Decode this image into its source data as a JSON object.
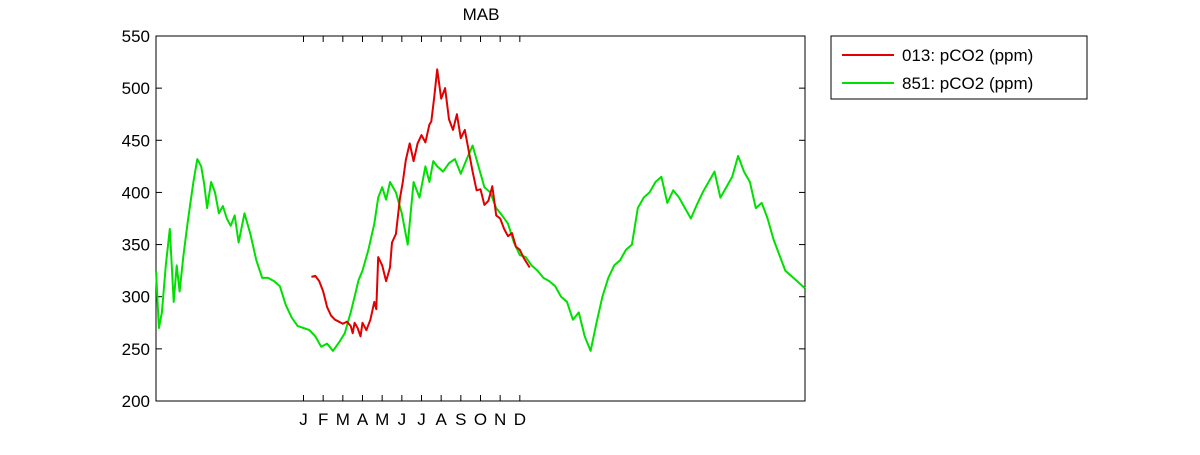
{
  "chart_data": {
    "type": "line",
    "title": "MAB",
    "xlabel": "",
    "ylabel": "",
    "ylim": [
      200,
      550
    ],
    "y_ticks": [
      200,
      250,
      300,
      350,
      400,
      450,
      500,
      550
    ],
    "x_tick_labels": [
      "J",
      "F",
      "M",
      "A",
      "M",
      "J",
      "J",
      "A",
      "S",
      "O",
      "N",
      "D"
    ],
    "x_tick_positions": [
      4.5,
      5.5,
      6.5,
      7.5,
      8.5,
      9.5,
      10.5,
      11.5,
      12.5,
      13.5,
      14.5,
      15.5
    ],
    "xlim": [
      -3,
      30
    ],
    "grid": false,
    "legend_position": "outside-top-right",
    "colors": {
      "013": "#e00000",
      "851": "#00e000"
    },
    "series": [
      {
        "name": "013: pCO2 (ppm)",
        "color": "#e00000",
        "x": [
          4.9,
          5.1,
          5.3,
          5.5,
          5.7,
          5.9,
          6.1,
          6.3,
          6.5,
          6.7,
          6.9,
          7.0,
          7.1,
          7.25,
          7.4,
          7.5,
          7.7,
          7.9,
          8.1,
          8.2,
          8.3,
          8.5,
          8.7,
          8.9,
          9.0,
          9.2,
          9.4,
          9.55,
          9.7,
          9.9,
          10.1,
          10.3,
          10.5,
          10.7,
          10.9,
          11.0,
          11.15,
          11.3,
          11.5,
          11.7,
          11.9,
          12.1,
          12.3,
          12.5,
          12.7,
          12.9,
          13.1,
          13.3,
          13.5,
          13.7,
          13.9,
          14.1,
          14.3,
          14.5,
          14.7,
          14.9,
          15.1,
          15.3,
          15.5,
          15.7,
          16.0
        ],
        "y": [
          319,
          320,
          315,
          305,
          290,
          282,
          278,
          276,
          274,
          276,
          272,
          265,
          275,
          270,
          262,
          275,
          268,
          278,
          295,
          288,
          338,
          330,
          315,
          328,
          352,
          360,
          394,
          410,
          431,
          447,
          430,
          447,
          455,
          448,
          465,
          468,
          492,
          518,
          490,
          500,
          470,
          460,
          475,
          452,
          460,
          440,
          420,
          402,
          403,
          388,
          392,
          406,
          378,
          375,
          365,
          358,
          361,
          348,
          345,
          337,
          328
        ]
      },
      {
        "name": "851: pCO2 (ppm)",
        "color": "#00e000",
        "x": [
          -3.0,
          -2.85,
          -2.7,
          -2.5,
          -2.3,
          -2.1,
          -1.95,
          -1.8,
          -1.6,
          -1.4,
          -1.25,
          -1.1,
          -0.9,
          -0.7,
          -0.55,
          -0.4,
          -0.2,
          0.0,
          0.2,
          0.4,
          0.6,
          0.8,
          1.0,
          1.2,
          1.5,
          1.8,
          2.1,
          2.4,
          2.7,
          3.0,
          3.3,
          3.6,
          3.9,
          4.2,
          4.5,
          4.8,
          5.1,
          5.4,
          5.7,
          6.0,
          6.3,
          6.6,
          6.9,
          7.1,
          7.3,
          7.5,
          7.8,
          8.1,
          8.3,
          8.5,
          8.7,
          8.9,
          9.2,
          9.5,
          9.8,
          10.1,
          10.4,
          10.7,
          10.9,
          11.1,
          11.3,
          11.6,
          11.9,
          12.2,
          12.5,
          12.8,
          13.1,
          13.4,
          13.7,
          14.0,
          14.3,
          14.6,
          14.9,
          15.2,
          15.5,
          15.8,
          16.1,
          16.4,
          16.7,
          17.0,
          17.3,
          17.6,
          17.9,
          18.2,
          18.5,
          18.8,
          19.1,
          19.4,
          19.7,
          20.0,
          20.3,
          20.6,
          20.9,
          21.2,
          21.5,
          21.8,
          22.1,
          22.4,
          22.7,
          23.0,
          23.3,
          23.6,
          23.9,
          24.2,
          24.5,
          24.8,
          25.1,
          25.4,
          25.7,
          26.0,
          26.3,
          26.6,
          26.9,
          27.2,
          27.5,
          27.8,
          28.1,
          28.4,
          28.7,
          29.0,
          29.3,
          29.6,
          30.0
        ],
        "y": [
          325,
          270,
          285,
          330,
          365,
          295,
          330,
          305,
          340,
          370,
          390,
          410,
          432,
          425,
          408,
          385,
          410,
          400,
          380,
          387,
          375,
          368,
          378,
          352,
          380,
          360,
          335,
          318,
          318,
          315,
          310,
          292,
          280,
          272,
          270,
          268,
          262,
          252,
          255,
          248,
          256,
          265,
          285,
          300,
          316,
          325,
          345,
          370,
          395,
          405,
          393,
          410,
          400,
          380,
          350,
          410,
          395,
          425,
          410,
          430,
          425,
          420,
          428,
          432,
          418,
          432,
          445,
          425,
          405,
          400,
          385,
          378,
          370,
          352,
          340,
          338,
          330,
          325,
          318,
          315,
          310,
          300,
          295,
          278,
          285,
          262,
          248,
          275,
          300,
          318,
          330,
          335,
          345,
          350,
          385,
          395,
          400,
          410,
          415,
          390,
          402,
          395,
          385,
          375,
          388,
          400,
          410,
          420,
          395,
          405,
          415,
          435,
          420,
          410,
          385,
          390,
          375,
          355,
          340,
          325,
          320,
          315,
          308
        ]
      }
    ]
  }
}
